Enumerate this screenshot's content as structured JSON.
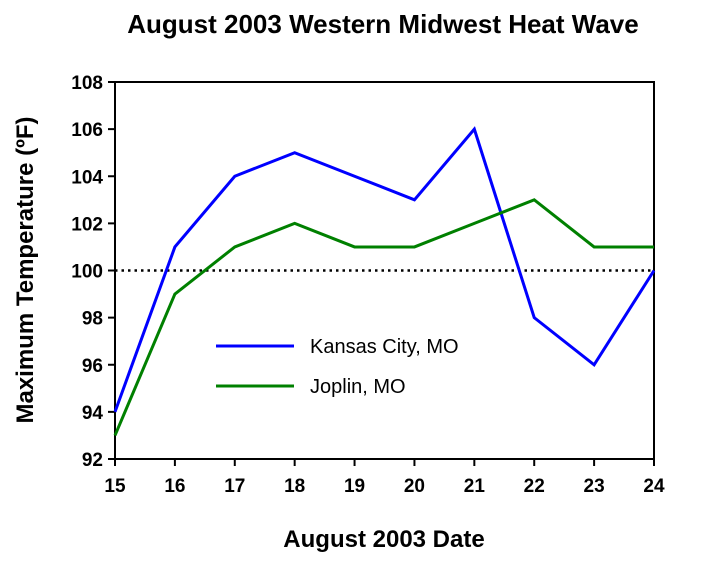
{
  "chart_data": {
    "type": "line",
    "title": "August 2003 Western Midwest Heat Wave",
    "xlabel": "August 2003 Date",
    "ylabel": "Maximum Temperature (ºF)",
    "x": [
      15,
      16,
      17,
      18,
      19,
      20,
      21,
      22,
      23,
      24
    ],
    "xlim": [
      15,
      24
    ],
    "ylim": [
      92,
      108
    ],
    "yticks": [
      92,
      94,
      96,
      98,
      100,
      102,
      104,
      106,
      108
    ],
    "grid": false,
    "legend_position": "center-left",
    "reference_line": {
      "value": 100,
      "style": "dotted",
      "color": "#000000"
    },
    "series": [
      {
        "name": "Kansas City, MO",
        "color": "#0000ff",
        "values": [
          94,
          101,
          104,
          105,
          104,
          103,
          106,
          98,
          96,
          100
        ]
      },
      {
        "name": "Joplin, MO",
        "color": "#008000",
        "values": [
          93,
          99,
          101,
          102,
          101,
          101,
          102,
          103,
          101,
          101
        ]
      }
    ]
  }
}
